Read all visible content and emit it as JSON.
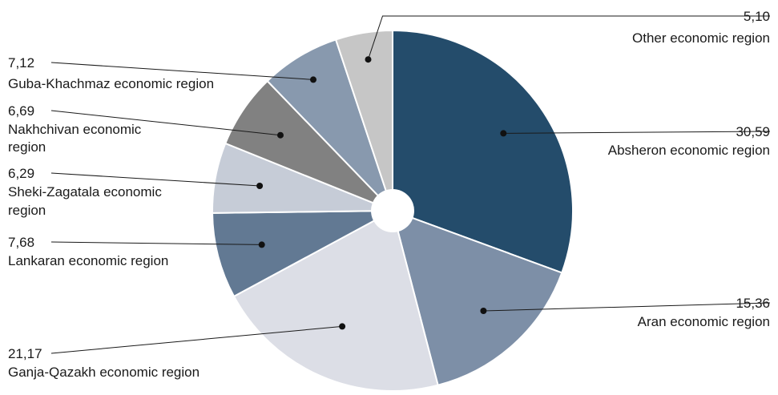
{
  "chart_data": {
    "type": "pie",
    "title": "",
    "donut_hole": true,
    "start_angle_deg": 0,
    "direction": "clockwise",
    "slices": [
      {
        "label": "Absheron economic region",
        "value": 30.59,
        "value_label": "30,59",
        "color": "#244c6b"
      },
      {
        "label": "Aran economic region",
        "value": 15.36,
        "value_label": "15,36",
        "color": "#7d8fa7"
      },
      {
        "label": "Ganja-Qazakh economic region",
        "value": 21.17,
        "value_label": "21,17",
        "color": "#dcdee6"
      },
      {
        "label": "Lankaran economic region",
        "value": 7.68,
        "value_label": "7,68",
        "color": "#627993"
      },
      {
        "label": "Sheki-Zagatala economic region",
        "value": 6.29,
        "value_label": "6,29",
        "color": "#c6ccd7"
      },
      {
        "label": "Nakhchivan economic region",
        "value": 6.69,
        "value_label": "6,69",
        "color": "#818181"
      },
      {
        "label": "Guba-Khachmaz economic region",
        "value": 7.12,
        "value_label": "7,12",
        "color": "#8899ae"
      },
      {
        "label": "Other economic region",
        "value": 5.1,
        "value_label": "5,10",
        "color": "#c6c6c6"
      }
    ]
  }
}
